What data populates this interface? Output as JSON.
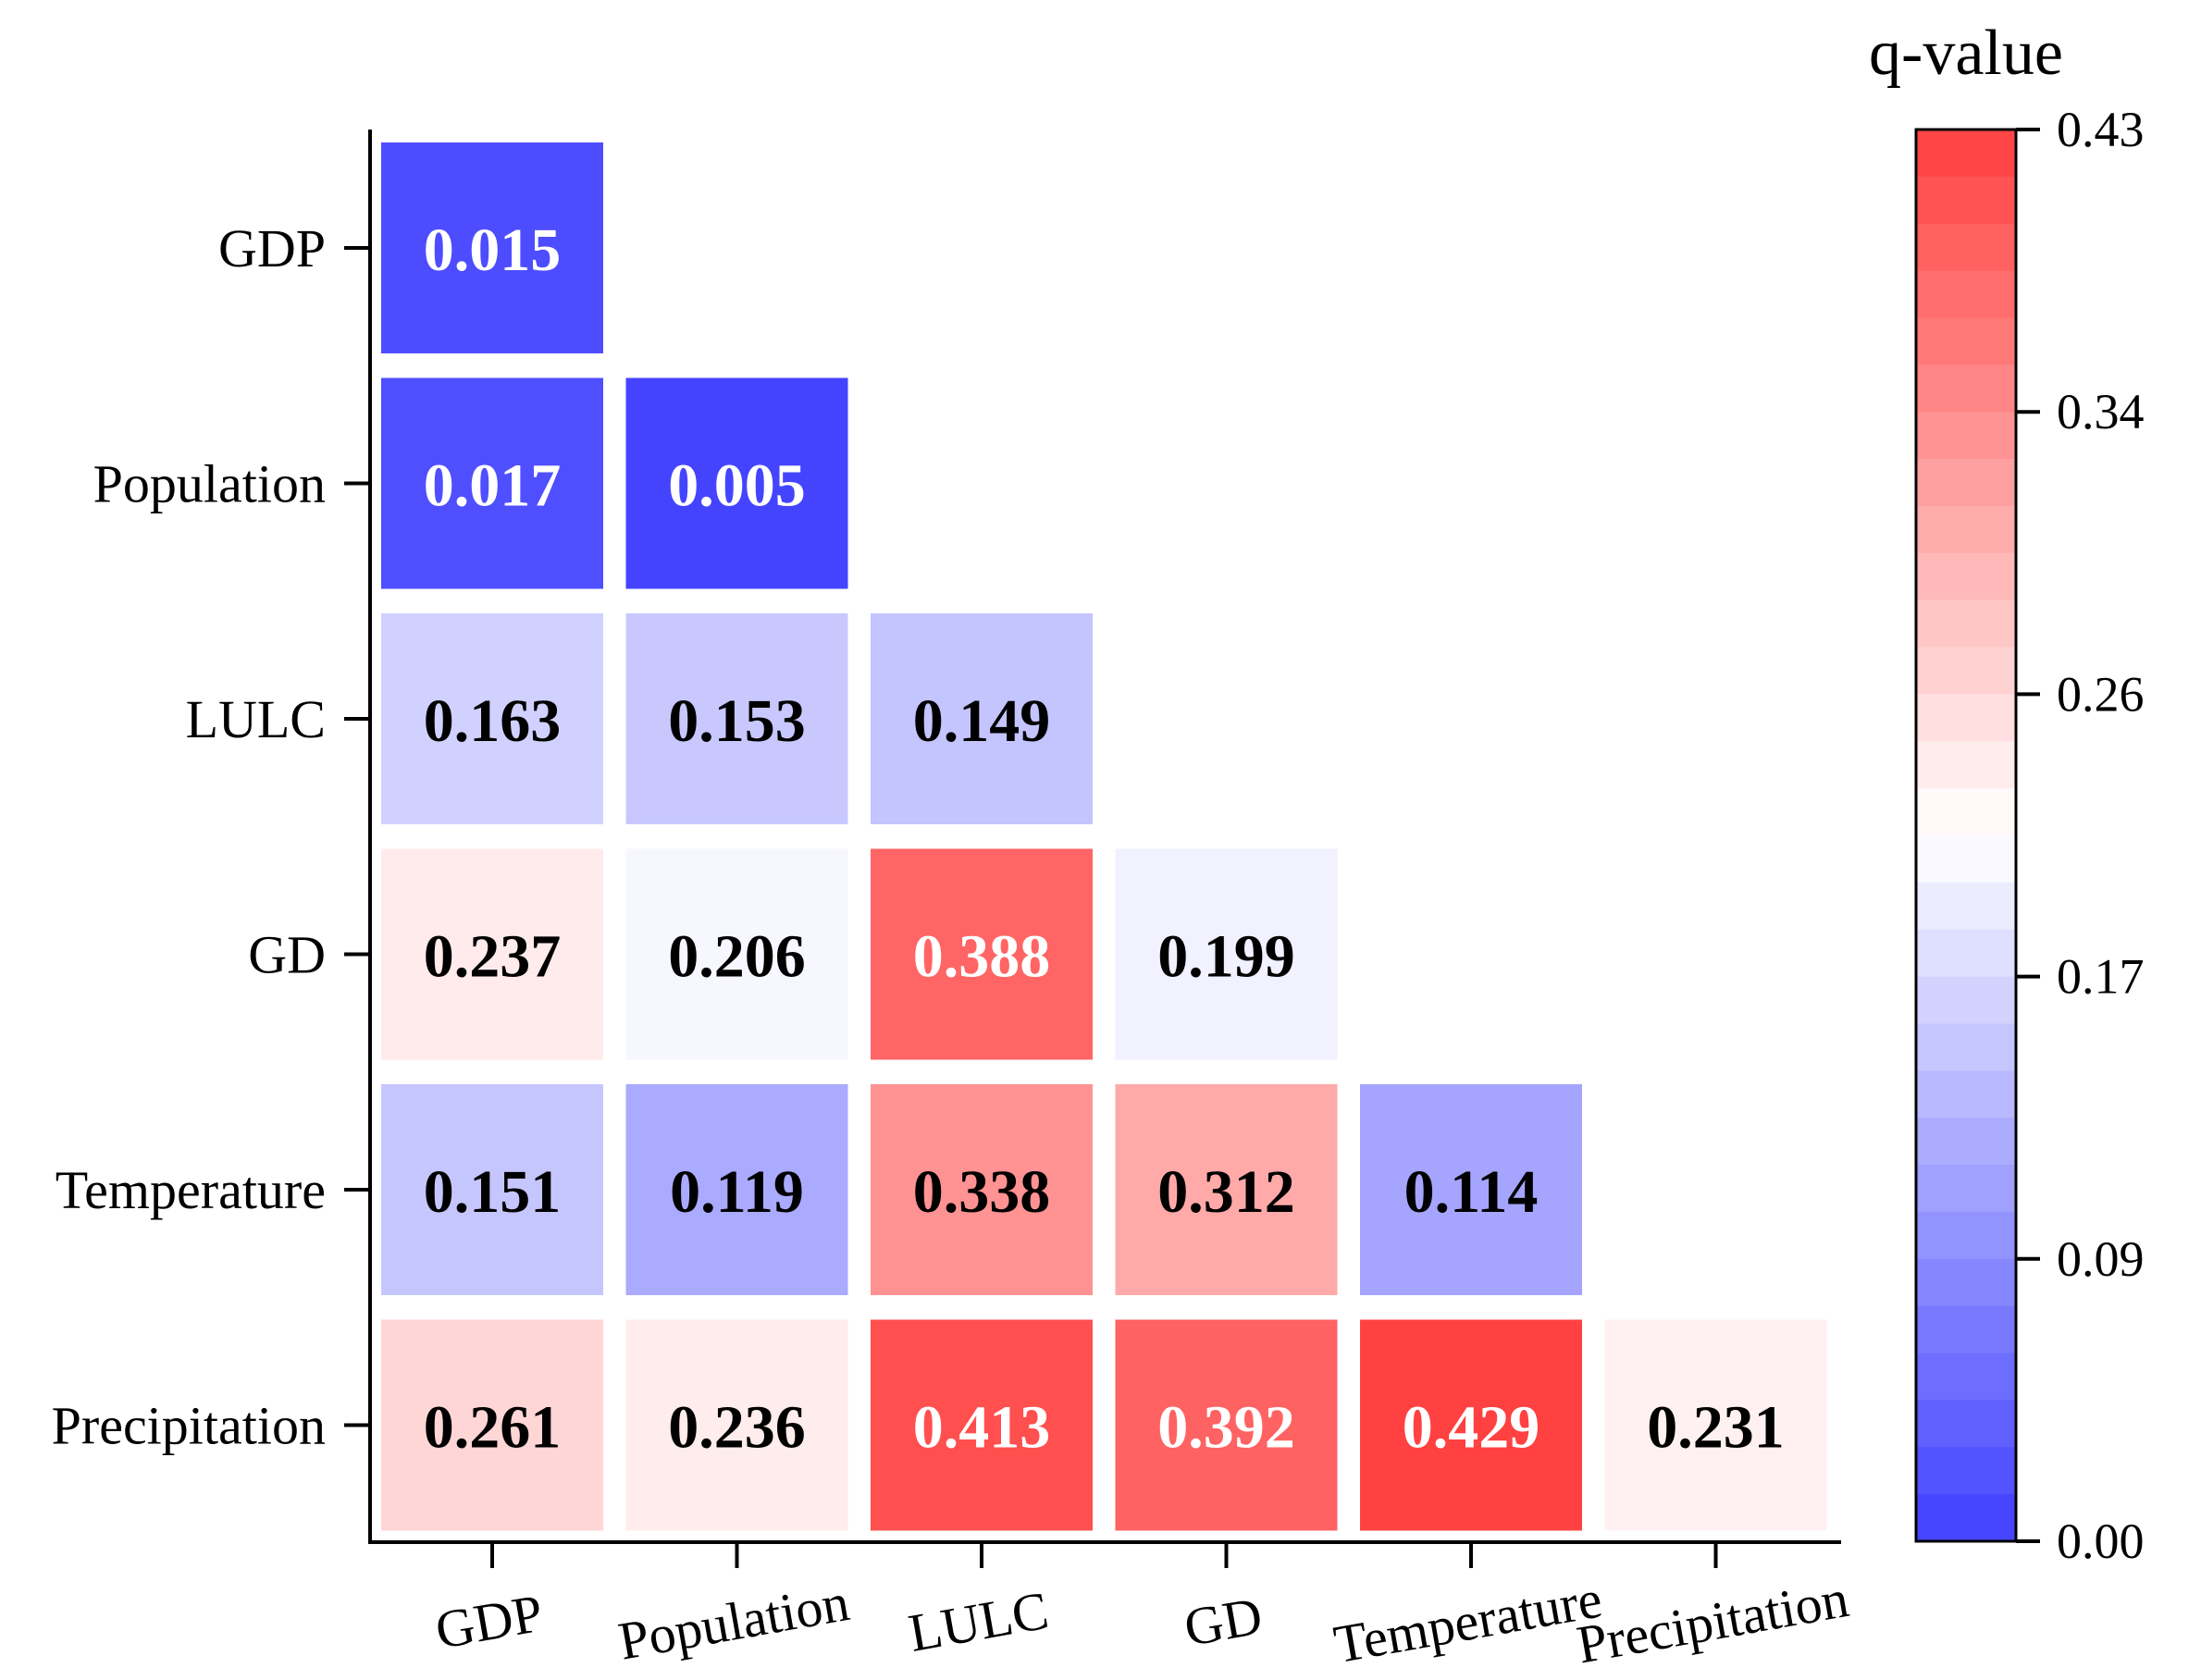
{
  "chart_data": {
    "type": "heatmap",
    "title": "",
    "variables": [
      "GDP",
      "Population",
      "LULC",
      "GD",
      "Temperature",
      "Precipitation"
    ],
    "x_tick_labels": [
      "GDP",
      "Population",
      "LULC",
      "GD",
      "Temperature",
      "Precipitation"
    ],
    "y_tick_labels": [
      "GDP",
      "Population",
      "LULC",
      "GD",
      "Temperature",
      "Precipitation"
    ],
    "matrix": [
      [
        "0.015"
      ],
      [
        "0.017",
        "0.005"
      ],
      [
        "0.163",
        "0.153",
        "0.149"
      ],
      [
        "0.237",
        "0.206",
        "0.388",
        "0.199"
      ],
      [
        "0.151",
        "0.119",
        "0.338",
        "0.312",
        "0.114"
      ],
      [
        "0.261",
        "0.236",
        "0.413",
        "0.392",
        "0.429",
        "0.231"
      ]
    ],
    "colorbar": {
      "title": "q-value",
      "min": 0.0,
      "max": 0.43,
      "ticks": [
        "0.00",
        "0.09",
        "0.17",
        "0.26",
        "0.34",
        "0.43"
      ],
      "low_color": "#4040ff",
      "mid_color": "#ffffff",
      "high_color": "#ff4040",
      "mid_value": 0.215
    }
  }
}
